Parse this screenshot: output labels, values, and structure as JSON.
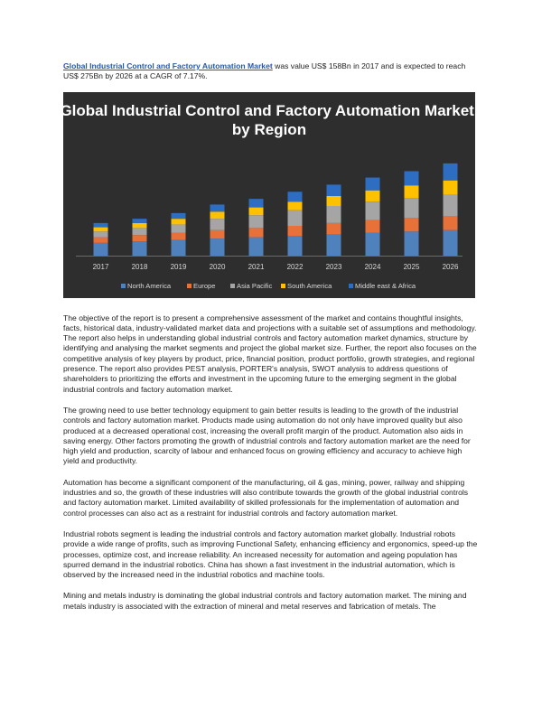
{
  "intro": {
    "link": "Global Industrial Control and Factory Automation Market",
    "text": " was value US$ 158Bn in 2017 and is expected to reach US$ 275Bn by 2026 at a CAGR of 7.17%."
  },
  "chart_data": {
    "type": "bar",
    "stacked": true,
    "title": "Global Industrial Control and Factory Automation Market, by Region",
    "categories": [
      "2017",
      "2018",
      "2019",
      "2020",
      "2021",
      "2022",
      "2023",
      "2024",
      "2025",
      "2026"
    ],
    "series": [
      {
        "name": "North America",
        "color": "#4f81bd",
        "values": [
          9,
          10,
          11,
          12,
          13,
          14,
          15,
          16,
          17,
          18
        ]
      },
      {
        "name": "Europe",
        "color": "#e8713a",
        "values": [
          4,
          4.5,
          5,
          6,
          6.5,
          7,
          8,
          9,
          9.5,
          10
        ]
      },
      {
        "name": "Asia Pacific",
        "color": "#a5a5a5",
        "values": [
          4,
          5,
          6,
          8,
          9,
          11,
          12,
          13,
          14,
          15
        ]
      },
      {
        "name": "South America",
        "color": "#ffc000",
        "values": [
          3,
          3.5,
          4,
          5,
          5.5,
          6,
          7,
          8,
          9,
          10
        ]
      },
      {
        "name": "Middle east & Africa",
        "color": "#2e6ec2",
        "values": [
          3,
          3,
          4,
          5,
          6,
          7,
          8,
          9,
          10,
          12
        ]
      }
    ],
    "ylim": [
      0,
      70
    ],
    "grid": false,
    "legend": "bottom"
  },
  "paragraphs": [
    "The objective of the report is to present a comprehensive assessment of the market and contains thoughtful insights, facts, historical data, industry-validated market data and projections with a suitable set of assumptions and methodology. The report also helps in understanding global industrial controls and factory automation market dynamics, structure by identifying and analysing the market segments and project the global market size. Further, the report also focuses on the competitive analysis of key players by product, price, financial position, product portfolio, growth strategies, and regional presence. The report also provides PEST analysis, PORTER's analysis, SWOT analysis to address questions of shareholders to prioritizing the efforts and investment in the upcoming future to the emerging segment in the global industrial controls and factory automation market.",
    "The growing need to use better technology equipment to gain better results is leading to the growth of the industrial controls and factory automation market. Products made using automation do not only have improved quality but also produced at a decreased operational cost, increasing the overall profit margin of the product. Automation also aids in saving energy. Other factors promoting the growth of industrial controls and factory automation market are the need for high yield and production, scarcity of labour and enhanced focus on growing efficiency and accuracy to achieve high yield and productivity.",
    "Automation has become a significant component of the manufacturing, oil & gas, mining, power, railway and shipping industries and so, the growth of these industries will also contribute towards the growth of the global industrial controls and factory automation market. Limited availability of skilled professionals for the implementation of automation and control processes can also act as a restraint for industrial controls and factory automation market.",
    "Industrial robots segment is leading the industrial controls and factory automation market globally. Industrial robots provide a wide range of profits, such as improving Functional Safety, enhancing efficiency and ergonomics, speed-up the processes, optimize cost, and increase reliability. An increased necessity for automation and ageing population has spurred demand in the industrial robotics. China has shown a fast investment in the industrial automation, which is observed by the increased need in the industrial robotics and machine tools.",
    "Mining and metals industry is dominating the global industrial controls and factory automation market. The mining and metals industry is associated with the extraction of mineral and metal reserves and fabrication of metals. The"
  ]
}
